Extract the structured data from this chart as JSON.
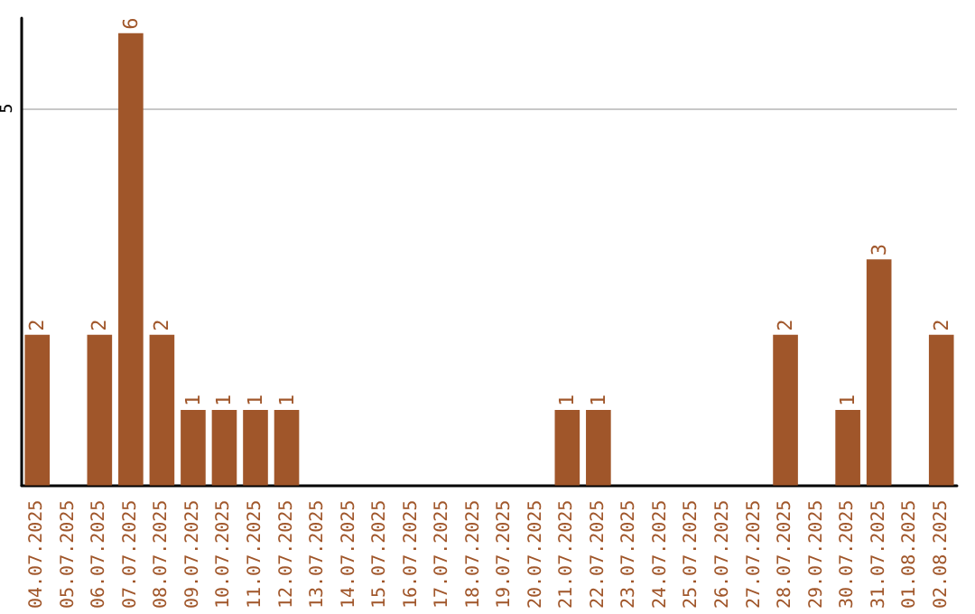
{
  "chart_data": {
    "type": "bar",
    "categories": [
      "04.07.2025",
      "05.07.2025",
      "06.07.2025",
      "07.07.2025",
      "08.07.2025",
      "09.07.2025",
      "10.07.2025",
      "11.07.2025",
      "12.07.2025",
      "13.07.2025",
      "14.07.2025",
      "15.07.2025",
      "16.07.2025",
      "17.07.2025",
      "18.07.2025",
      "19.07.2025",
      "20.07.2025",
      "21.07.2025",
      "22.07.2025",
      "23.07.2025",
      "24.07.2025",
      "25.07.2025",
      "26.07.2025",
      "27.07.2025",
      "28.07.2025",
      "29.07.2025",
      "30.07.2025",
      "31.07.2025",
      "01.08.2025",
      "02.08.2025"
    ],
    "values": [
      2,
      0,
      2,
      6,
      2,
      1,
      1,
      1,
      1,
      0,
      0,
      0,
      0,
      0,
      0,
      0,
      0,
      1,
      1,
      0,
      0,
      0,
      0,
      0,
      2,
      0,
      1,
      3,
      0,
      2
    ],
    "value_labels": [
      "2",
      null,
      "2",
      "6",
      "2",
      "1",
      "1",
      "1",
      "1",
      null,
      null,
      null,
      null,
      null,
      null,
      null,
      null,
      "1",
      "1",
      null,
      null,
      null,
      null,
      null,
      "2",
      null,
      "1",
      "3",
      null,
      "2"
    ],
    "color": "#a0562a",
    "ylim": [
      0,
      6.2
    ],
    "yticks": [
      5
    ],
    "grid": "y"
  }
}
